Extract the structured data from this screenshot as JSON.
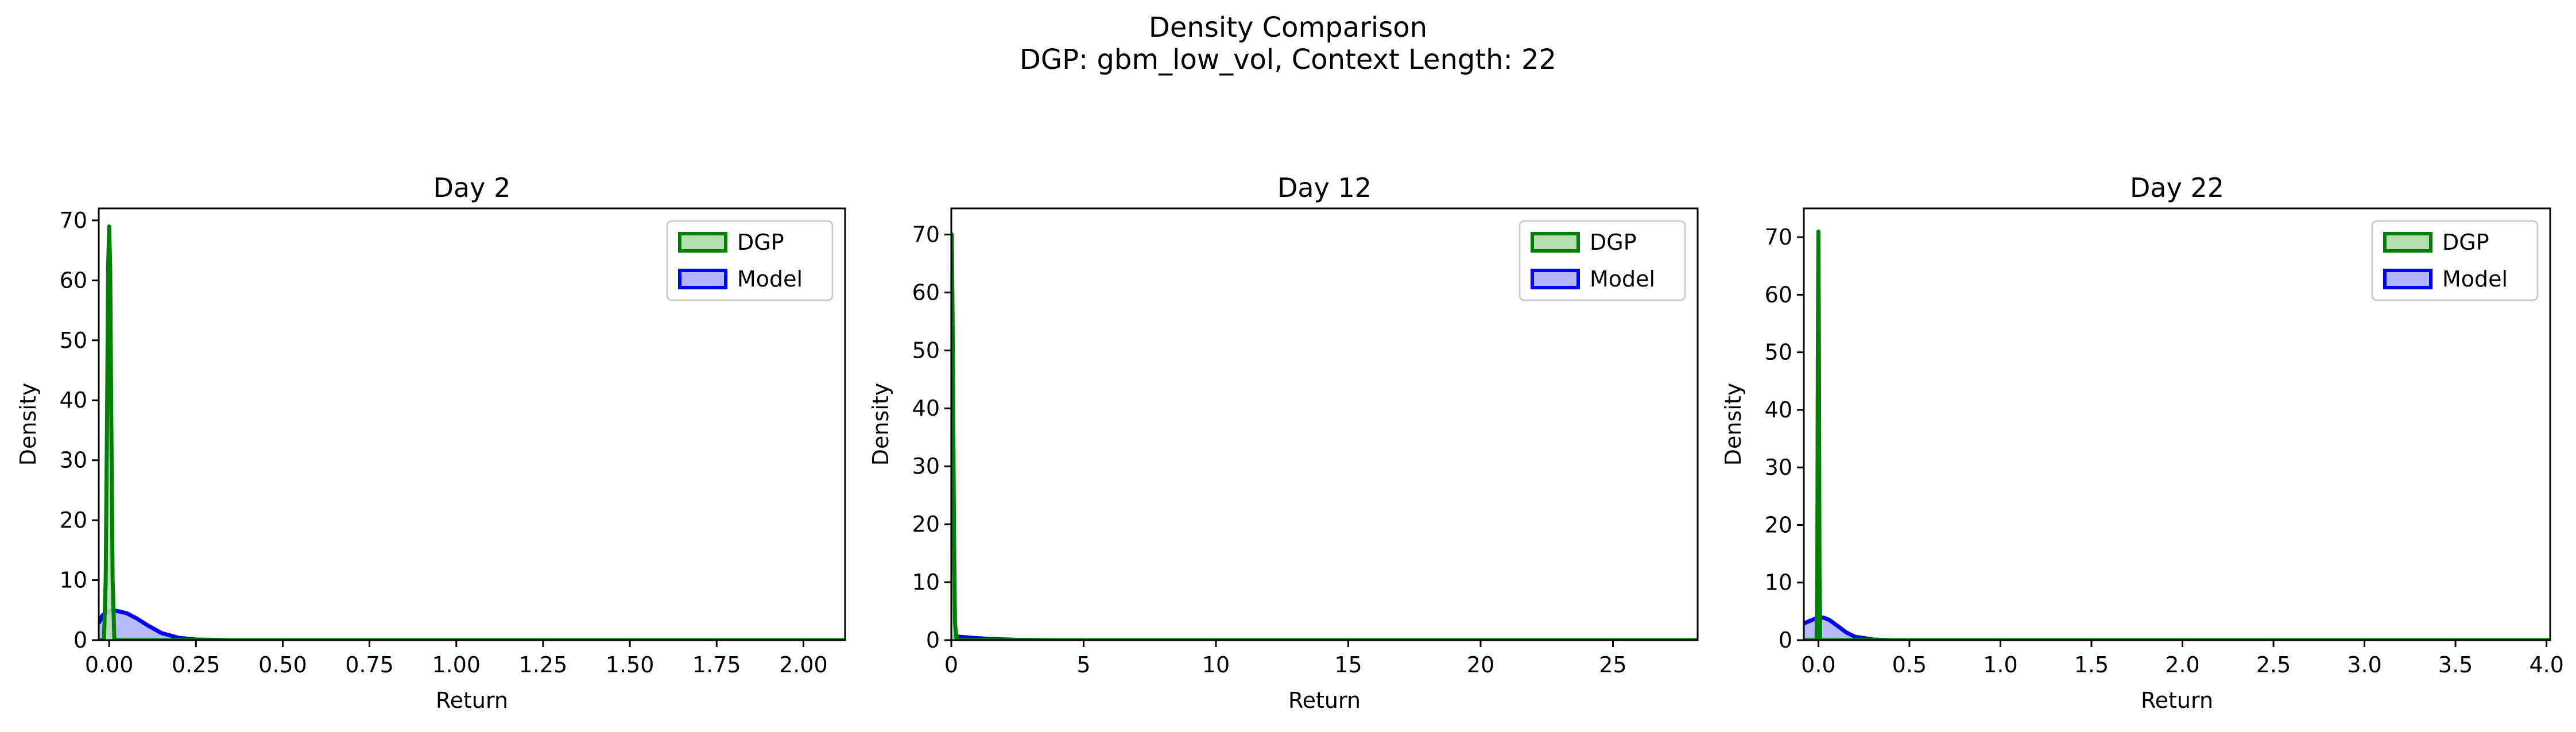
{
  "figure": {
    "title": "Density Comparison",
    "subtitle": "DGP: gbm_low_vol, Context Length: 22"
  },
  "colors": {
    "dgp": "#008000",
    "model": "#0000ff",
    "dgp_fill": "#b3dfb3",
    "model_fill": "#b3b3ff"
  },
  "chart_data": [
    {
      "type": "area",
      "title": "Day 2",
      "xlabel": "Return",
      "ylabel": "Density",
      "xlim": [
        -0.03,
        2.12
      ],
      "ylim": [
        0,
        72
      ],
      "xticks": [
        0.0,
        0.25,
        0.5,
        0.75,
        1.0,
        1.25,
        1.5,
        1.75,
        2.0
      ],
      "xtick_labels": [
        "0.00",
        "0.25",
        "0.50",
        "0.75",
        "1.00",
        "1.25",
        "1.50",
        "1.75",
        "2.00"
      ],
      "yticks": [
        0,
        10,
        20,
        30,
        40,
        50,
        60,
        70
      ],
      "ytick_labels": [
        "0",
        "10",
        "20",
        "30",
        "40",
        "50",
        "60",
        "70"
      ],
      "grid": false,
      "legend": {
        "position": "top-right",
        "entries": [
          "DGP",
          "Model"
        ]
      },
      "series": [
        {
          "name": "DGP",
          "x": [
            -0.03,
            -0.015,
            -0.01,
            -0.006,
            -0.003,
            0.0,
            0.003,
            0.006,
            0.01,
            0.015,
            2.12
          ],
          "y": [
            0,
            0,
            10,
            38,
            62,
            69,
            62,
            38,
            10,
            0,
            0
          ]
        },
        {
          "name": "Model",
          "x": [
            -0.03,
            -0.02,
            0.0,
            0.02,
            0.05,
            0.08,
            0.11,
            0.15,
            0.2,
            0.25,
            0.35,
            2.12
          ],
          "y": [
            2.8,
            4.1,
            4.9,
            4.9,
            4.5,
            3.6,
            2.5,
            1.2,
            0.4,
            0.1,
            0.0,
            0.0
          ]
        }
      ]
    },
    {
      "type": "area",
      "title": "Day 12",
      "xlabel": "Return",
      "ylabel": "Density",
      "xlim": [
        0,
        28.2
      ],
      "ylim": [
        0,
        74.5
      ],
      "xticks": [
        0,
        5,
        10,
        15,
        20,
        25
      ],
      "xtick_labels": [
        "0",
        "5",
        "10",
        "15",
        "20",
        "25"
      ],
      "yticks": [
        0,
        10,
        20,
        30,
        40,
        50,
        60,
        70
      ],
      "ytick_labels": [
        "0",
        "10",
        "20",
        "30",
        "40",
        "50",
        "60",
        "70"
      ],
      "grid": false,
      "legend": {
        "position": "top-right",
        "entries": [
          "DGP",
          "Model"
        ]
      },
      "series": [
        {
          "name": "DGP",
          "x": [
            0.0,
            0.02,
            0.06,
            0.1,
            0.14,
            0.2,
            28.2
          ],
          "y": [
            70,
            70,
            50,
            20,
            3,
            0,
            0
          ]
        },
        {
          "name": "Model",
          "x": [
            0.0,
            0.3,
            0.8,
            1.5,
            2.5,
            4.0,
            28.2
          ],
          "y": [
            0.6,
            0.6,
            0.4,
            0.2,
            0.05,
            0.0,
            0.0
          ]
        }
      ]
    },
    {
      "type": "area",
      "title": "Day 22",
      "xlabel": "Return",
      "ylabel": "Density",
      "xlim": [
        -0.08,
        4.02
      ],
      "ylim": [
        0,
        75
      ],
      "xticks": [
        0.0,
        0.5,
        1.0,
        1.5,
        2.0,
        2.5,
        3.0,
        3.5,
        4.0
      ],
      "xtick_labels": [
        "0.0",
        "0.5",
        "1.0",
        "1.5",
        "2.0",
        "2.5",
        "3.0",
        "3.5",
        "4.0"
      ],
      "yticks": [
        0,
        10,
        20,
        30,
        40,
        50,
        60,
        70
      ],
      "ytick_labels": [
        "0",
        "10",
        "20",
        "30",
        "40",
        "50",
        "60",
        "70"
      ],
      "grid": false,
      "legend": {
        "position": "top-right",
        "entries": [
          "DGP",
          "Model"
        ]
      },
      "series": [
        {
          "name": "DGP",
          "x": [
            -0.08,
            -0.01,
            -0.006,
            -0.003,
            0.0,
            0.003,
            0.006,
            0.01,
            4.02
          ],
          "y": [
            0,
            0,
            12,
            50,
            71,
            50,
            12,
            0,
            0
          ]
        },
        {
          "name": "Model",
          "x": [
            -0.08,
            -0.05,
            -0.02,
            0.0,
            0.03,
            0.06,
            0.1,
            0.15,
            0.2,
            0.3,
            0.4,
            4.02
          ],
          "y": [
            2.9,
            3.3,
            3.7,
            3.9,
            3.9,
            3.5,
            2.6,
            1.4,
            0.6,
            0.1,
            0.0,
            0.0
          ]
        }
      ]
    }
  ]
}
